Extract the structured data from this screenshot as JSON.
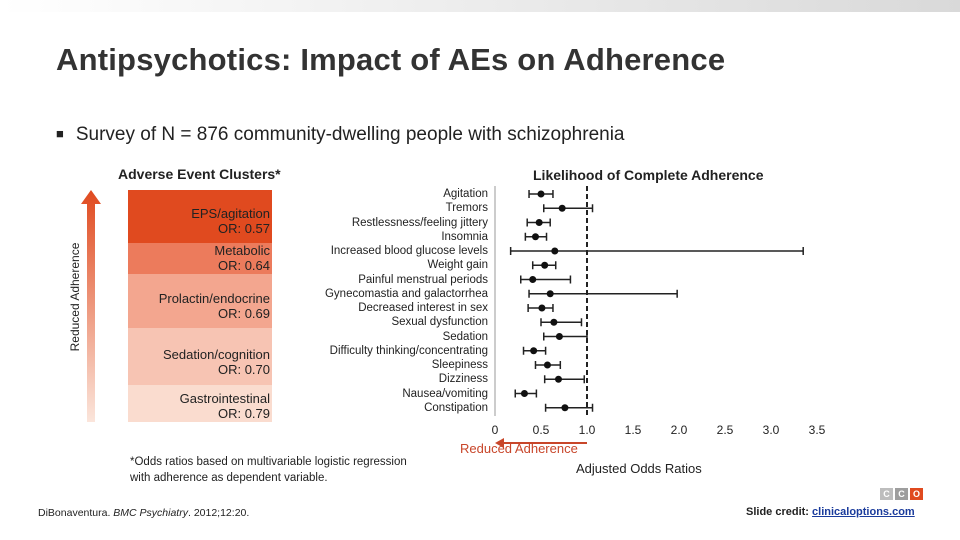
{
  "title": "Antipsychotics: Impact of AEs on Adherence",
  "bullet": "Survey of N = 876 community-dwelling people with schizophrenia",
  "left_panel": {
    "heading": "Adverse Event Clusters*",
    "axis_label": "Reduced Adherence",
    "clusters": [
      {
        "name": "EPS/agitation",
        "or": "OR: 0.57",
        "color": "#e04a1f"
      },
      {
        "name": "Metabolic",
        "or": "OR: 0.64",
        "color": "#ec7b5c"
      },
      {
        "name": "Prolactin/endocrine",
        "or": "OR: 0.69",
        "color": "#f3a68f"
      },
      {
        "name": "Sedation/cognition",
        "or": "OR: 0.70",
        "color": "#f7c4b3"
      },
      {
        "name": "Gastrointestinal",
        "or": "OR: 0.79",
        "color": "#fadccf"
      }
    ]
  },
  "footnote": {
    "line1": "*Odds ratios based on multivariable logistic regression",
    "line2": "with adherence as dependent variable."
  },
  "citation": {
    "authors": "DiBonaventura. ",
    "journal": "BMC Psychiatry",
    "details": ". 2012;12:20."
  },
  "credit": {
    "label": "Slide credit: ",
    "link": "clinicaloptions.com"
  },
  "logo_letters": [
    "C",
    "C",
    "O"
  ],
  "chart_data": {
    "type": "forest",
    "title": "Likelihood of Complete Adherence",
    "xlabel": "Adjusted Odds Ratios",
    "xlabel_note": "Reduced Adherence",
    "xlim": [
      0,
      3.5
    ],
    "xticks": [
      "0",
      "0.5",
      "1.0",
      "1.5",
      "2.0",
      "2.5",
      "3.0",
      "3.5"
    ],
    "reference_line": 1.0,
    "categories": [
      "Agitation",
      "Tremors",
      "Restlessness/feeling jittery",
      "Insomnia",
      "Increased blood glucose levels",
      "Weight gain",
      "Painful menstrual periods",
      "Gynecomastia and galactorrhea",
      "Decreased interest in sex",
      "Sexual dysfunction",
      "Sedation",
      "Difficulty thinking/concentrating",
      "Sleepiness",
      "Dizziness",
      "Nausea/vomiting",
      "Constipation"
    ],
    "or": [
      0.5,
      0.73,
      0.48,
      0.44,
      0.65,
      0.54,
      0.41,
      0.6,
      0.51,
      0.64,
      0.7,
      0.42,
      0.57,
      0.69,
      0.32,
      0.76
    ],
    "ci_low": [
      0.37,
      0.53,
      0.35,
      0.33,
      0.17,
      0.41,
      0.28,
      0.37,
      0.36,
      0.5,
      0.53,
      0.31,
      0.44,
      0.54,
      0.22,
      0.55
    ],
    "ci_high": [
      0.63,
      1.06,
      0.6,
      0.56,
      3.35,
      0.66,
      0.82,
      1.98,
      0.63,
      0.94,
      1.0,
      0.55,
      0.71,
      0.97,
      0.45,
      1.06
    ]
  }
}
